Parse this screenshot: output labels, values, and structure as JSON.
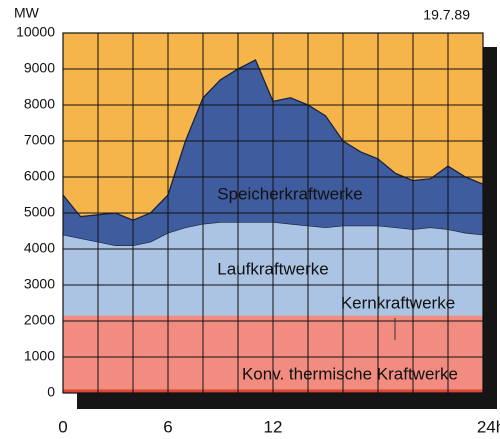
{
  "chart_data": {
    "type": "stacked-area",
    "y_unit_label": "MW",
    "date": "19.7.89",
    "x": [
      0,
      1,
      2,
      3,
      4,
      5,
      6,
      7,
      8,
      9,
      10,
      11,
      12,
      13,
      14,
      15,
      16,
      17,
      18,
      19,
      20,
      21,
      22,
      23,
      24
    ],
    "xlim": [
      0,
      24
    ],
    "xticks": [
      0,
      6,
      12,
      {
        "value": 24,
        "label": "24h"
      }
    ],
    "xgrid": [
      0,
      2,
      4,
      6,
      8,
      10,
      12,
      14,
      16,
      18,
      20,
      22,
      24
    ],
    "ylim": [
      0,
      10000
    ],
    "yticks": [
      0,
      1000,
      2000,
      3000,
      4000,
      5000,
      6000,
      7000,
      8000,
      9000,
      10000
    ],
    "grid": true,
    "background_color": "#f6b54a",
    "series": [
      {
        "name": "Konv. thermische Kraftwerke",
        "color": "#d9473b",
        "values": [
          100,
          100,
          100,
          100,
          100,
          100,
          100,
          100,
          100,
          100,
          100,
          100,
          100,
          100,
          100,
          100,
          100,
          100,
          100,
          100,
          100,
          100,
          100,
          100,
          100
        ]
      },
      {
        "name": "Kernkraftwerke",
        "color": "#f28c80",
        "values": [
          2050,
          2050,
          2050,
          2050,
          2050,
          2050,
          2050,
          2050,
          2050,
          2050,
          2050,
          2050,
          2050,
          2050,
          2050,
          2050,
          2050,
          2050,
          2050,
          2050,
          2050,
          2050,
          2050,
          2050,
          2050
        ]
      },
      {
        "name": "Laufkraftwerke",
        "color": "#abc4e4",
        "values": [
          2250,
          2150,
          2050,
          1950,
          1950,
          2050,
          2300,
          2450,
          2550,
          2600,
          2600,
          2600,
          2600,
          2550,
          2500,
          2450,
          2500,
          2500,
          2500,
          2450,
          2400,
          2450,
          2400,
          2300,
          2250
        ]
      },
      {
        "name": "Speicherkraftwerke",
        "color": "#3f5c9f",
        "values": [
          1100,
          600,
          750,
          900,
          700,
          800,
          1050,
          2400,
          3500,
          3950,
          4250,
          4500,
          3350,
          3500,
          3350,
          3100,
          2350,
          2050,
          1850,
          1500,
          1350,
          1350,
          1750,
          1550,
          1400
        ]
      }
    ]
  }
}
